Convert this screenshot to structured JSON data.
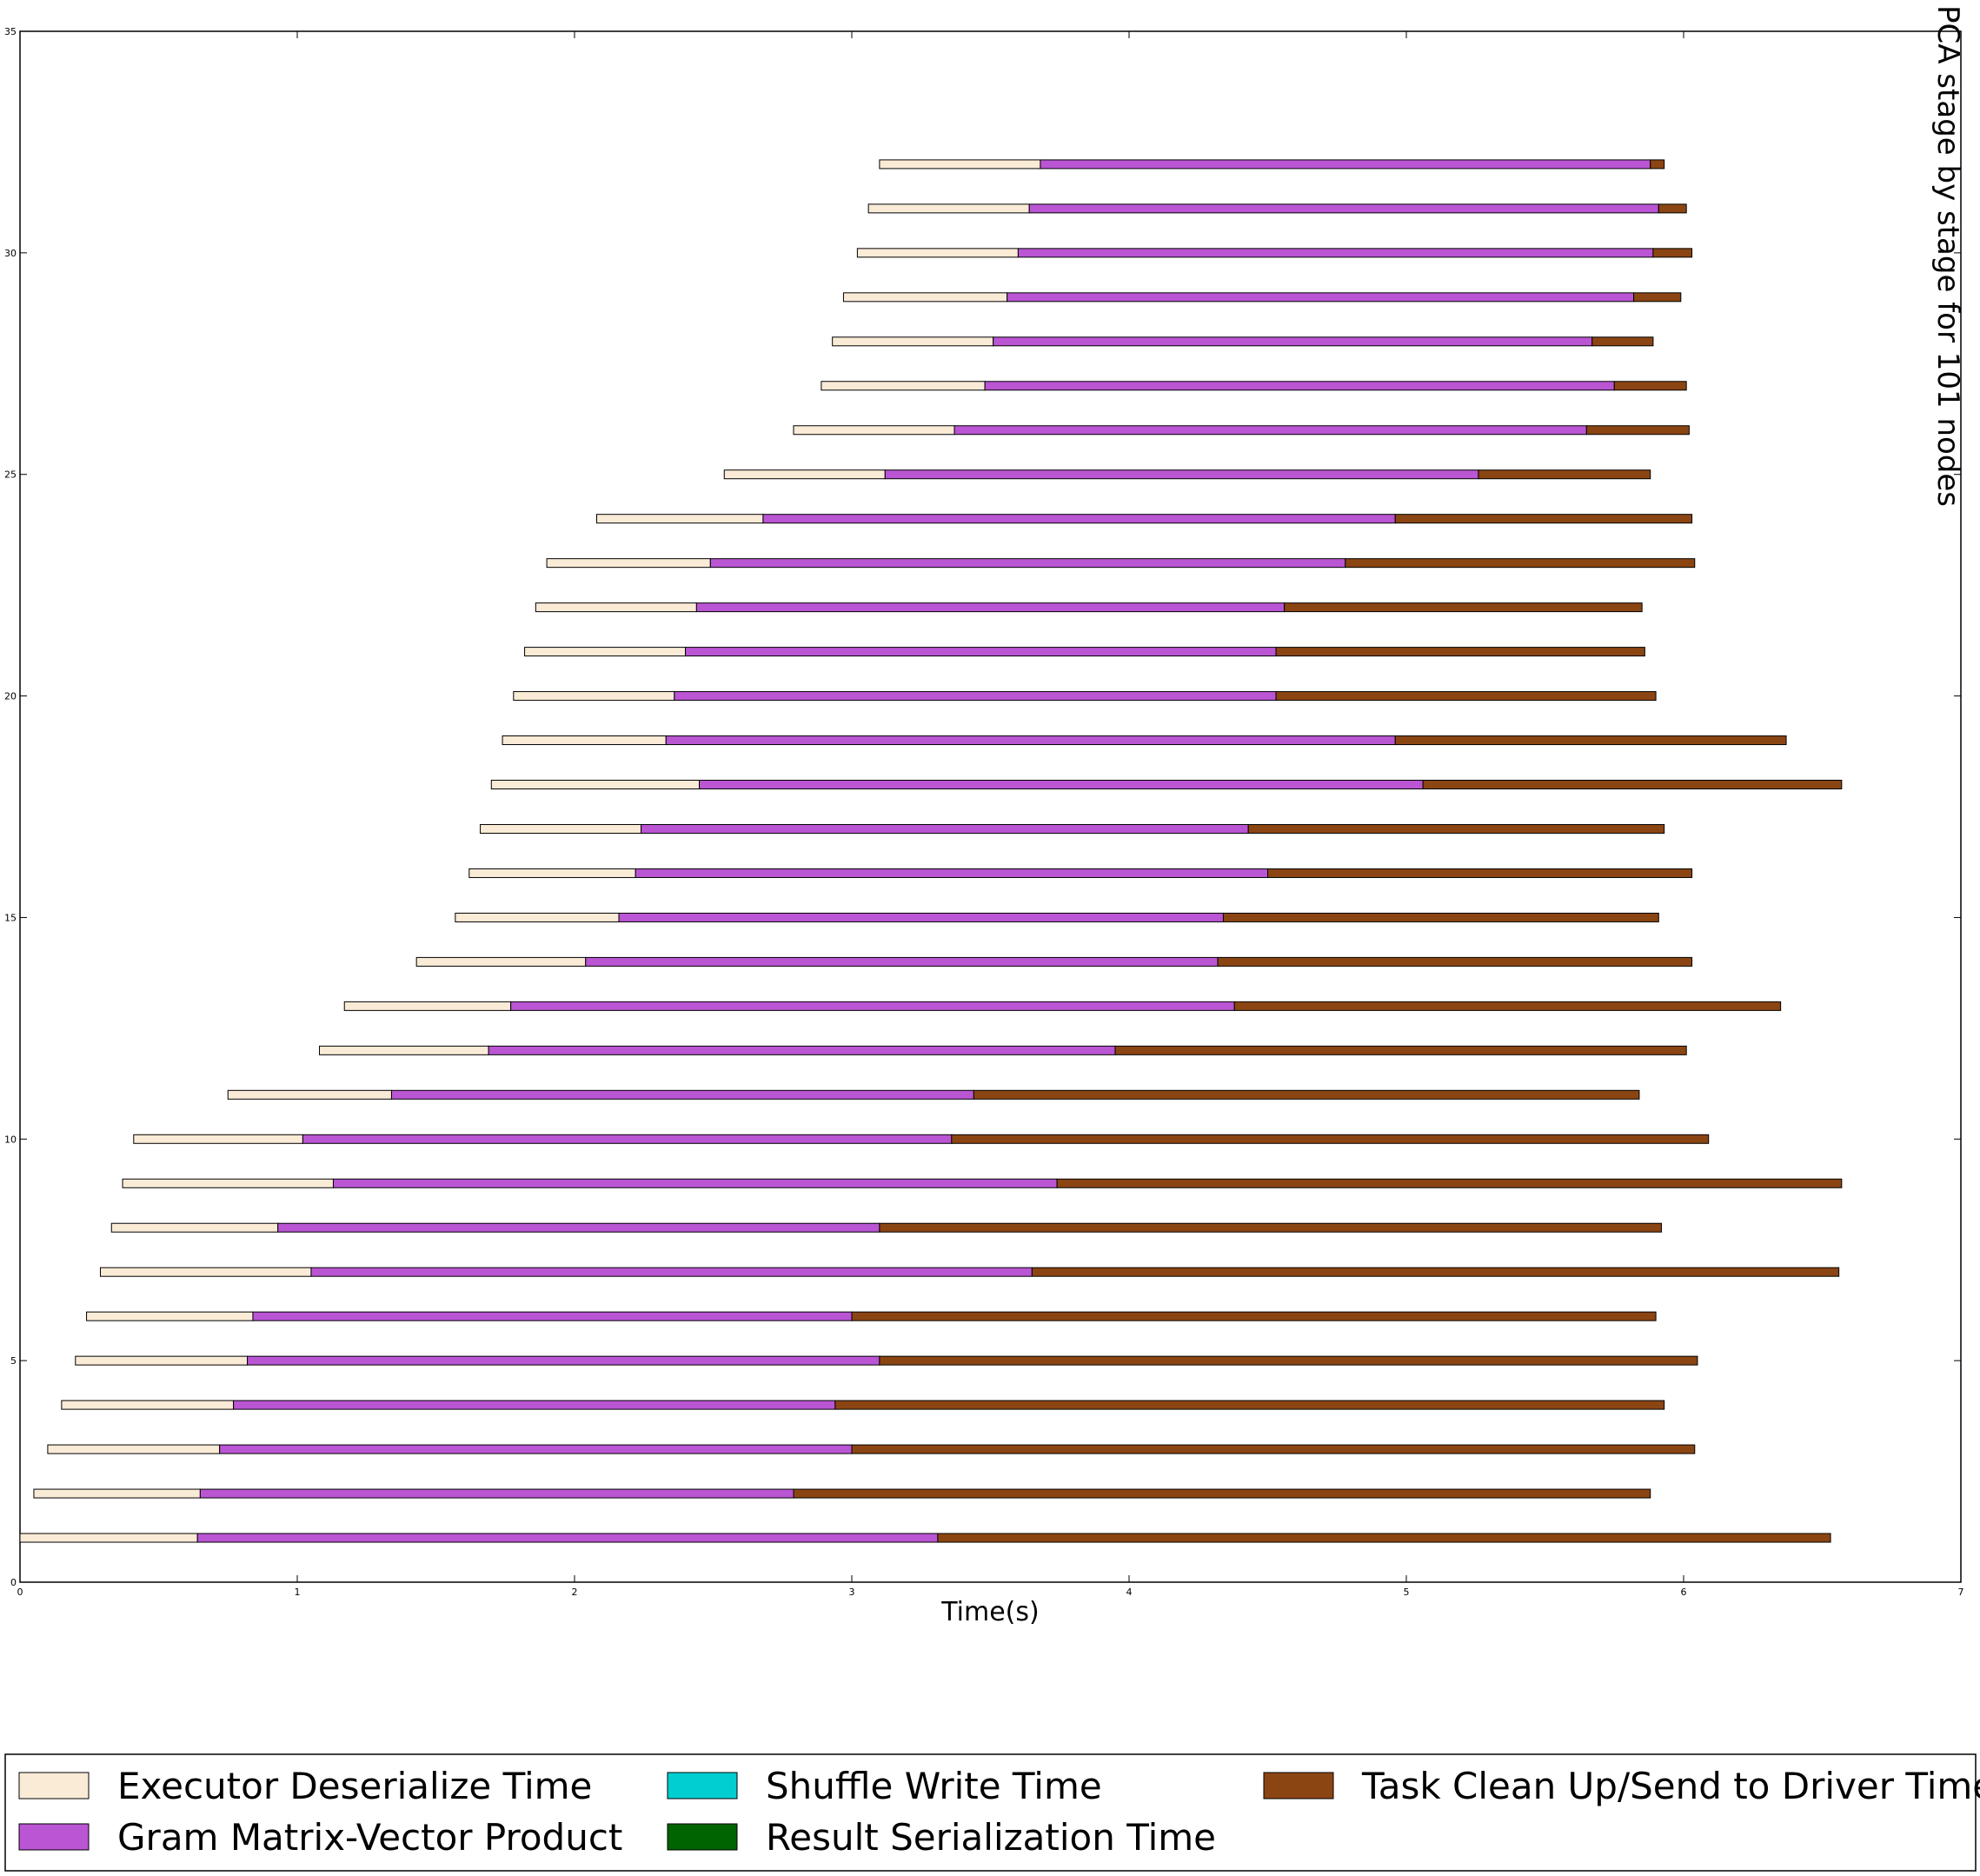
{
  "chart_data": {
    "type": "bar",
    "orientation": "horizontal-stacked",
    "title": "PCA stage by stage for 101 nodes",
    "xlabel": "Time(s)",
    "ylabel": "",
    "xlim": [
      0,
      7
    ],
    "ylim": [
      0,
      35
    ],
    "xticks": [
      "0",
      "1",
      "2",
      "3",
      "4",
      "5",
      "6",
      "7"
    ],
    "yticks": [
      "0",
      "5",
      "10",
      "15",
      "20",
      "25",
      "30",
      "35"
    ],
    "grid": false,
    "legend_position": "bottom",
    "series": [
      {
        "name": "Executor Deserialize Time",
        "color": "#faebd7"
      },
      {
        "name": "Gram Matrix-Vector Product",
        "color": "#ba55d3"
      },
      {
        "name": "Shuffle Write Time",
        "color": "#00ced1"
      },
      {
        "name": "Result Serialization Time",
        "color": "#006400"
      },
      {
        "name": "Task Clean Up/Send to Driver Time",
        "color": "#8b4513"
      }
    ],
    "tasks": [
      {
        "y": 1,
        "start": 0.0,
        "deserialize_end": 0.64,
        "gram_end": 3.31,
        "end": 6.53
      },
      {
        "y": 2,
        "start": 0.05,
        "deserialize_end": 0.65,
        "gram_end": 2.79,
        "end": 5.88
      },
      {
        "y": 3,
        "start": 0.1,
        "deserialize_end": 0.72,
        "gram_end": 3.0,
        "end": 6.04
      },
      {
        "y": 4,
        "start": 0.15,
        "deserialize_end": 0.77,
        "gram_end": 2.94,
        "end": 5.93
      },
      {
        "y": 5,
        "start": 0.2,
        "deserialize_end": 0.82,
        "gram_end": 3.1,
        "end": 6.05
      },
      {
        "y": 6,
        "start": 0.24,
        "deserialize_end": 0.84,
        "gram_end": 3.0,
        "end": 5.9
      },
      {
        "y": 7,
        "start": 0.29,
        "deserialize_end": 1.05,
        "gram_end": 3.65,
        "end": 6.56
      },
      {
        "y": 8,
        "start": 0.33,
        "deserialize_end": 0.93,
        "gram_end": 3.1,
        "end": 5.92
      },
      {
        "y": 9,
        "start": 0.37,
        "deserialize_end": 1.13,
        "gram_end": 3.74,
        "end": 6.57
      },
      {
        "y": 10,
        "start": 0.41,
        "deserialize_end": 1.02,
        "gram_end": 3.36,
        "end": 6.09
      },
      {
        "y": 11,
        "start": 0.75,
        "deserialize_end": 1.34,
        "gram_end": 3.44,
        "end": 5.84
      },
      {
        "y": 12,
        "start": 1.08,
        "deserialize_end": 1.69,
        "gram_end": 3.95,
        "end": 6.01
      },
      {
        "y": 13,
        "start": 1.17,
        "deserialize_end": 1.77,
        "gram_end": 4.38,
        "end": 6.35
      },
      {
        "y": 14,
        "start": 1.43,
        "deserialize_end": 2.04,
        "gram_end": 4.32,
        "end": 6.03
      },
      {
        "y": 15,
        "start": 1.57,
        "deserialize_end": 2.16,
        "gram_end": 4.34,
        "end": 5.91
      },
      {
        "y": 16,
        "start": 1.62,
        "deserialize_end": 2.22,
        "gram_end": 4.5,
        "end": 6.03
      },
      {
        "y": 17,
        "start": 1.66,
        "deserialize_end": 2.24,
        "gram_end": 4.43,
        "end": 5.93
      },
      {
        "y": 18,
        "start": 1.7,
        "deserialize_end": 2.45,
        "gram_end": 5.06,
        "end": 6.57
      },
      {
        "y": 19,
        "start": 1.74,
        "deserialize_end": 2.33,
        "gram_end": 4.96,
        "end": 6.37
      },
      {
        "y": 20,
        "start": 1.78,
        "deserialize_end": 2.36,
        "gram_end": 4.53,
        "end": 5.9
      },
      {
        "y": 21,
        "start": 1.82,
        "deserialize_end": 2.4,
        "gram_end": 4.53,
        "end": 5.86
      },
      {
        "y": 22,
        "start": 1.86,
        "deserialize_end": 2.44,
        "gram_end": 4.56,
        "end": 5.85
      },
      {
        "y": 23,
        "start": 1.9,
        "deserialize_end": 2.49,
        "gram_end": 4.78,
        "end": 6.04
      },
      {
        "y": 24,
        "start": 2.08,
        "deserialize_end": 2.68,
        "gram_end": 4.96,
        "end": 6.03
      },
      {
        "y": 25,
        "start": 2.54,
        "deserialize_end": 3.12,
        "gram_end": 5.26,
        "end": 5.88
      },
      {
        "y": 26,
        "start": 2.79,
        "deserialize_end": 3.37,
        "gram_end": 5.65,
        "end": 6.02
      },
      {
        "y": 27,
        "start": 2.89,
        "deserialize_end": 3.48,
        "gram_end": 5.75,
        "end": 6.01
      },
      {
        "y": 28,
        "start": 2.93,
        "deserialize_end": 3.51,
        "gram_end": 5.67,
        "end": 5.89
      },
      {
        "y": 29,
        "start": 2.97,
        "deserialize_end": 3.56,
        "gram_end": 5.82,
        "end": 5.99
      },
      {
        "y": 30,
        "start": 3.02,
        "deserialize_end": 3.6,
        "gram_end": 5.89,
        "end": 6.03
      },
      {
        "y": 31,
        "start": 3.06,
        "deserialize_end": 3.64,
        "gram_end": 5.91,
        "end": 6.01
      },
      {
        "y": 32,
        "start": 3.1,
        "deserialize_end": 3.68,
        "gram_end": 5.88,
        "end": 5.93
      }
    ]
  }
}
